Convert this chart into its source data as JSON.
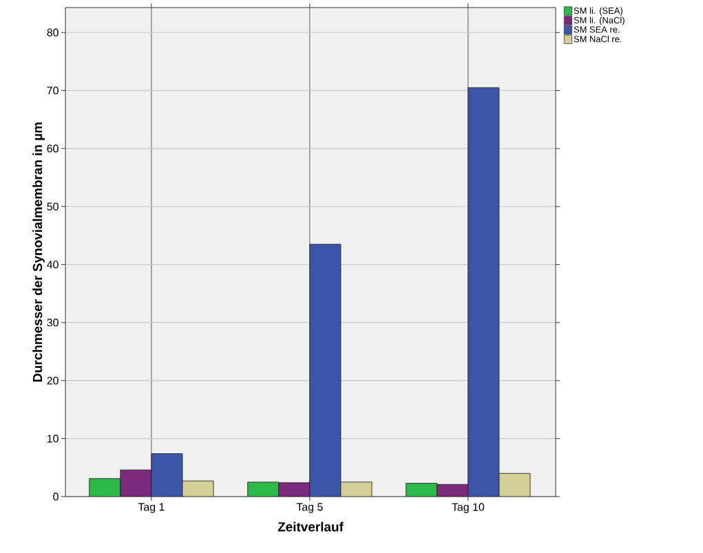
{
  "chart_data": {
    "type": "bar",
    "xlabel": "Zeitverlauf",
    "ylabel": "Durchmesser der Synovialmembran in µm",
    "categories": [
      "Tag 1",
      "Tag 5",
      "Tag 10"
    ],
    "series": [
      {
        "name": "SM  li. (SEA)",
        "color": "#2db84a",
        "values": [
          3.1,
          2.5,
          2.3
        ]
      },
      {
        "name": "SM  li. (NaCl)",
        "color": "#7b2a7b",
        "values": [
          4.6,
          2.4,
          2.1
        ]
      },
      {
        "name": "SM SEA  re.",
        "color": "#3b56a8",
        "values": [
          7.4,
          43.5,
          70.5
        ]
      },
      {
        "name": "SM NaCl re.",
        "color": "#d4cf96",
        "values": [
          2.7,
          2.5,
          4.0
        ]
      }
    ],
    "ylim": [
      0,
      84.3
    ],
    "yticks": [
      0,
      10,
      20,
      30,
      40,
      50,
      60,
      70,
      80
    ],
    "grid": true,
    "legend": "top right"
  }
}
